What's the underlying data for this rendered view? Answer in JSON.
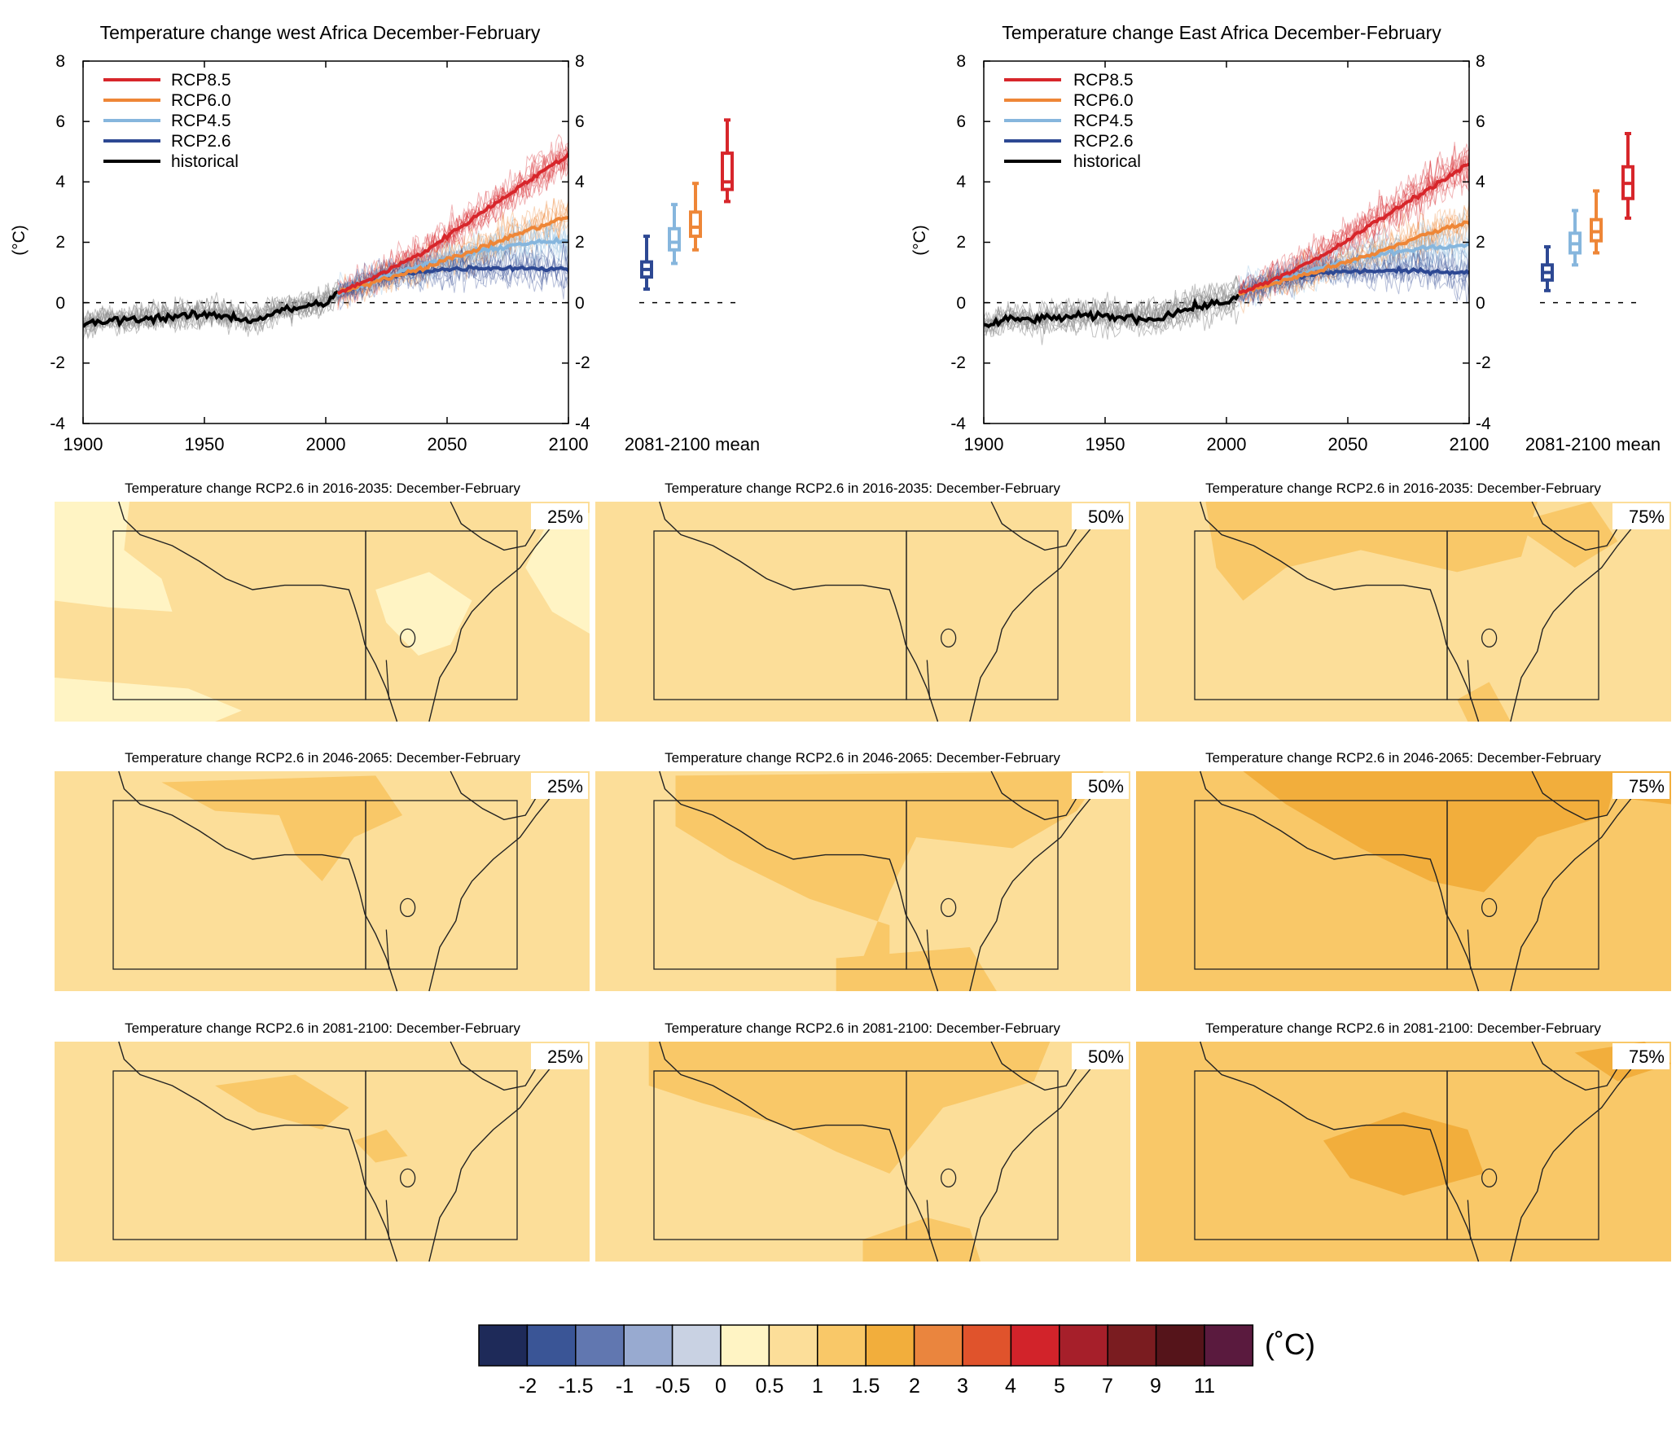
{
  "colors": {
    "rcp85": "#d7262b",
    "rcp60": "#ee8637",
    "rcp45": "#86b6dd",
    "rcp26": "#2d4893",
    "historical": "#000000",
    "hist_spread": "#8c8c8c",
    "map_0_05": "#fff4c4",
    "map_05_1": "#fcde99",
    "map_1_15": "#f9c868",
    "map_15_2": "#f2ae3c"
  },
  "chart_data": [
    {
      "type": "line",
      "title": "Temperature change west Africa December-February",
      "ylabel": "(°C)",
      "xlabel": "",
      "xlim": [
        1900,
        2100
      ],
      "ylim": [
        -4,
        8
      ],
      "xticks": [
        "1900",
        "1950",
        "2000",
        "2050",
        "2100"
      ],
      "yticks": [
        "-4",
        "-2",
        "0",
        "2",
        "4",
        "6",
        "8"
      ],
      "legend_position": "top-left",
      "legend": [
        "RCP8.5",
        "RCP6.0",
        "RCP4.5",
        "RCP2.6",
        "historical"
      ],
      "boxplot_xlabel": "2081-2100 mean",
      "series": [
        {
          "name": "historical",
          "x": [
            1900,
            1910,
            1920,
            1930,
            1940,
            1950,
            1960,
            1970,
            1980,
            1990,
            2000,
            2005
          ],
          "values": [
            -0.75,
            -0.6,
            -0.55,
            -0.5,
            -0.45,
            -0.4,
            -0.45,
            -0.6,
            -0.3,
            -0.15,
            0.0,
            0.3
          ]
        },
        {
          "name": "RCP2.6",
          "x": [
            2005,
            2020,
            2040,
            2060,
            2080,
            2100
          ],
          "values": [
            0.3,
            0.75,
            1.05,
            1.15,
            1.15,
            1.1
          ]
        },
        {
          "name": "RCP4.5",
          "x": [
            2005,
            2020,
            2040,
            2060,
            2080,
            2100
          ],
          "values": [
            0.3,
            0.75,
            1.25,
            1.65,
            1.95,
            2.05
          ]
        },
        {
          "name": "RCP6.0",
          "x": [
            2005,
            2020,
            2040,
            2060,
            2080,
            2100
          ],
          "values": [
            0.3,
            0.7,
            1.15,
            1.7,
            2.3,
            2.85
          ]
        },
        {
          "name": "RCP8.5",
          "x": [
            2005,
            2020,
            2040,
            2060,
            2080,
            2100
          ],
          "values": [
            0.3,
            0.85,
            1.65,
            2.75,
            3.85,
            4.9
          ]
        }
      ],
      "boxplots": [
        {
          "name": "RCP2.6",
          "min": 0.45,
          "q1": 0.85,
          "median": 1.1,
          "q3": 1.35,
          "max": 2.2
        },
        {
          "name": "RCP4.5",
          "min": 1.3,
          "q1": 1.75,
          "median": 2.0,
          "q3": 2.45,
          "max": 3.25
        },
        {
          "name": "RCP6.0",
          "min": 1.75,
          "q1": 2.2,
          "median": 2.5,
          "q3": 3.0,
          "max": 3.95
        },
        {
          "name": "RCP8.5",
          "min": 3.35,
          "q1": 3.75,
          "median": 4.0,
          "q3": 4.95,
          "max": 6.05
        }
      ]
    },
    {
      "type": "line",
      "title": "Temperature change East Africa December-February",
      "ylabel": "(°C)",
      "xlabel": "",
      "xlim": [
        1900,
        2100
      ],
      "ylim": [
        -4,
        8
      ],
      "xticks": [
        "1900",
        "1950",
        "2000",
        "2050",
        "2100"
      ],
      "yticks": [
        "-4",
        "-2",
        "0",
        "2",
        "4",
        "6",
        "8"
      ],
      "legend_position": "top-left",
      "legend": [
        "RCP8.5",
        "RCP6.0",
        "RCP4.5",
        "RCP2.6",
        "historical"
      ],
      "boxplot_xlabel": "2081-2100 mean",
      "series": [
        {
          "name": "historical",
          "x": [
            1900,
            1910,
            1920,
            1930,
            1940,
            1950,
            1960,
            1970,
            1980,
            1990,
            2000,
            2005
          ],
          "values": [
            -0.8,
            -0.55,
            -0.55,
            -0.5,
            -0.45,
            -0.45,
            -0.5,
            -0.55,
            -0.3,
            -0.1,
            0.0,
            0.3
          ]
        },
        {
          "name": "RCP2.6",
          "x": [
            2005,
            2020,
            2040,
            2060,
            2080,
            2100
          ],
          "values": [
            0.3,
            0.7,
            1.0,
            1.05,
            1.05,
            1.0
          ]
        },
        {
          "name": "RCP4.5",
          "x": [
            2005,
            2020,
            2040,
            2060,
            2080,
            2100
          ],
          "values": [
            0.3,
            0.7,
            1.2,
            1.55,
            1.8,
            1.9
          ]
        },
        {
          "name": "RCP6.0",
          "x": [
            2005,
            2020,
            2040,
            2060,
            2080,
            2100
          ],
          "values": [
            0.3,
            0.65,
            1.1,
            1.6,
            2.2,
            2.7
          ]
        },
        {
          "name": "RCP8.5",
          "x": [
            2005,
            2020,
            2040,
            2060,
            2080,
            2100
          ],
          "values": [
            0.3,
            0.8,
            1.55,
            2.6,
            3.6,
            4.6
          ]
        }
      ],
      "boxplots": [
        {
          "name": "RCP2.6",
          "min": 0.4,
          "q1": 0.75,
          "median": 1.0,
          "q3": 1.25,
          "max": 1.85
        },
        {
          "name": "RCP4.5",
          "min": 1.25,
          "q1": 1.65,
          "median": 1.95,
          "q3": 2.3,
          "max": 3.05
        },
        {
          "name": "RCP6.0",
          "min": 1.65,
          "q1": 2.05,
          "median": 2.35,
          "q3": 2.75,
          "max": 3.7
        },
        {
          "name": "RCP8.5",
          "min": 2.8,
          "q1": 3.45,
          "median": 3.95,
          "q3": 4.5,
          "max": 5.6
        }
      ]
    },
    {
      "type": "heatmap",
      "scenario": "RCP2.6",
      "season": "December-February",
      "rows": [
        {
          "title": "Temperature change RCP2.6 in 2016-2035: December-February",
          "period": "2016-2035",
          "panels": [
            {
              "percentile": "25%",
              "base_class": "0.5-1",
              "patches": [
                {
                  "class": "0-0.5"
                },
                {
                  "class": "0-0.5"
                },
                {
                  "class": "0-0.5"
                },
                {
                  "class": "0-0.5"
                }
              ]
            },
            {
              "percentile": "50%",
              "base_class": "0.5-1",
              "patches": []
            },
            {
              "percentile": "75%",
              "base_class": "0.5-1",
              "patches": [
                {
                  "class": "1-1.5"
                },
                {
                  "class": "1-1.5"
                },
                {
                  "class": "1-1.5"
                }
              ]
            }
          ]
        },
        {
          "title": "Temperature change RCP2.6 in 2046-2065: December-February",
          "period": "2046-2065",
          "panels": [
            {
              "percentile": "25%",
              "base_class": "0.5-1",
              "patches": [
                {
                  "class": "1-1.5"
                }
              ]
            },
            {
              "percentile": "50%",
              "base_class": "0.5-1",
              "patches": [
                {
                  "class": "1-1.5"
                },
                {
                  "class": "1-1.5"
                }
              ]
            },
            {
              "percentile": "75%",
              "base_class": "1-1.5",
              "patches": [
                {
                  "class": "1.5-2"
                },
                {
                  "class": "1.5-2"
                }
              ]
            }
          ]
        },
        {
          "title": "Temperature change RCP2.6 in 2081-2100: December-February",
          "period": "2081-2100",
          "panels": [
            {
              "percentile": "25%",
              "base_class": "0.5-1",
              "patches": [
                {
                  "class": "1-1.5"
                },
                {
                  "class": "1-1.5"
                }
              ]
            },
            {
              "percentile": "50%",
              "base_class": "0.5-1",
              "patches": [
                {
                  "class": "1-1.5"
                },
                {
                  "class": "1-1.5"
                }
              ]
            },
            {
              "percentile": "75%",
              "base_class": "1-1.5",
              "patches": [
                {
                  "class": "1.5-2"
                },
                {
                  "class": "1.5-2"
                }
              ]
            }
          ]
        }
      ]
    }
  ],
  "colorbar": {
    "unit": "(˚C)",
    "labels": [
      "-2",
      "-1.5",
      "-1",
      "-0.5",
      "0",
      "0.5",
      "1",
      "1.5",
      "2",
      "3",
      "4",
      "5",
      "7",
      "9",
      "11"
    ],
    "colors": [
      "#1e2a59",
      "#3a5596",
      "#6177b0",
      "#98aad0",
      "#c9d2e3",
      "#fff4c4",
      "#fcde99",
      "#f9c868",
      "#f2ae3c",
      "#ea853e",
      "#e0532c",
      "#d2232a",
      "#a61f2a",
      "#7a1c20",
      "#55141a",
      "#5a1a3e"
    ]
  }
}
